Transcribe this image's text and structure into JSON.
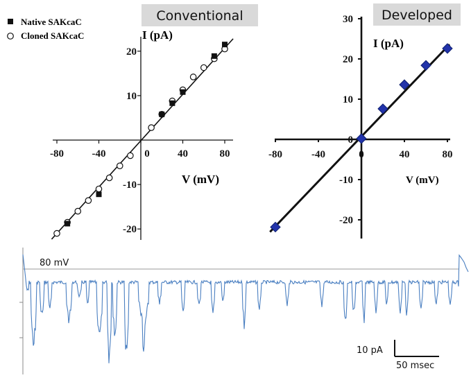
{
  "chart_data": [
    {
      "type": "scatter",
      "panel_label": "Conventional",
      "xlabel": "V (mV)",
      "ylabel": "I (pA)",
      "xlim": [
        -85,
        85
      ],
      "ylim": [
        -22,
        23
      ],
      "x_ticks": [
        -80,
        -40,
        0,
        40,
        80
      ],
      "x_tick_labels": [
        "-80",
        "-40",
        "0",
        "40",
        "80"
      ],
      "y_ticks": [
        -20,
        -10,
        10,
        20
      ],
      "y_tick_labels": [
        "-20",
        "-10",
        "10",
        "20"
      ],
      "legend_placement": "top-left",
      "series": [
        {
          "name": "Native SAKcaC",
          "marker": "filled-square",
          "x": [
            -70,
            -40,
            20,
            30,
            40,
            70,
            80
          ],
          "y": [
            -18.8,
            -12.2,
            5.8,
            8.3,
            10.8,
            18.9,
            21.5
          ]
        },
        {
          "name": "Cloned SAKcaC",
          "marker": "open-circle",
          "x": [
            -80,
            -70,
            -60,
            -50,
            -40,
            -30,
            -20,
            -10,
            10,
            20,
            30,
            40,
            50,
            60,
            70,
            80
          ],
          "y": [
            -21.0,
            -18.5,
            -16.0,
            -13.6,
            -11.0,
            -8.5,
            -5.8,
            -3.5,
            2.8,
            5.8,
            8.8,
            11.3,
            14.2,
            16.3,
            18.3,
            20.5
          ]
        }
      ],
      "fit_line": {
        "x": [
          -85,
          88
        ],
        "y": [
          -22.3,
          22.8
        ]
      }
    },
    {
      "type": "scatter",
      "panel_label": "Developed",
      "xlabel": "V (mV)",
      "ylabel": "I (pA)",
      "xlim": [
        -85,
        85
      ],
      "ylim": [
        -25,
        30
      ],
      "x_ticks": [
        -80,
        -40,
        0,
        40,
        80
      ],
      "x_tick_labels": [
        "-80",
        "-40",
        "0",
        "40",
        "80"
      ],
      "y_ticks": [
        -20,
        -10,
        0,
        10,
        20,
        30
      ],
      "y_tick_labels": [
        "-20",
        "-10",
        "0",
        "10",
        "20",
        "30"
      ],
      "series": [
        {
          "name": "",
          "marker": "filled-diamond",
          "color": "#2233aa",
          "x": [
            -80,
            0,
            20,
            40,
            60,
            80
          ],
          "y": [
            -21.8,
            0.2,
            7.6,
            13.6,
            18.4,
            22.6
          ]
        }
      ],
      "fit_line": {
        "x": [
          -85,
          82
        ],
        "y": [
          -23.0,
          23.6
        ]
      }
    },
    {
      "type": "line",
      "trace_color": "#4a7fc1",
      "voltage_label": "80 mV",
      "scalebar_current_label": "10 pA",
      "scalebar_time_label": "50 msec"
    }
  ]
}
